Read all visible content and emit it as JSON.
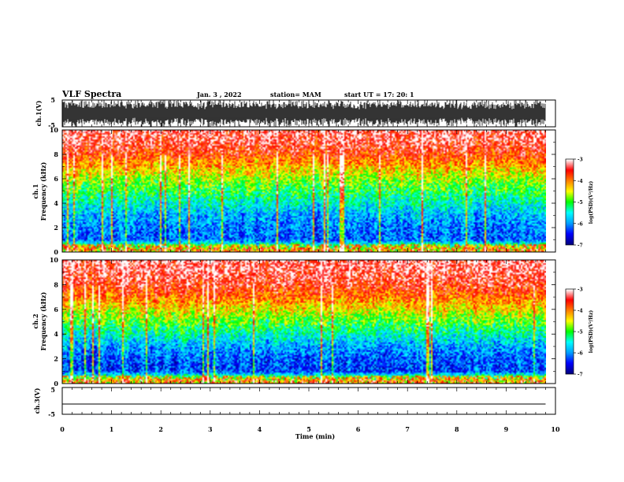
{
  "header": {
    "title": "VLF Spectra",
    "date": "Jan. 3 , 2022",
    "station": "station= MAM",
    "start": "start UT =  17: 20: 1"
  },
  "chart_data": [
    {
      "type": "line",
      "name": "ch1-waveform",
      "ylabel": "ch.1(V)",
      "ylim": [
        -5,
        5
      ],
      "yticks": [
        "5",
        "-5"
      ],
      "x_end_min": 9.8,
      "description_values": "dense noise bursts between about -5 and 5 V"
    },
    {
      "type": "heatmap",
      "name": "ch1-spectrogram",
      "ylabel_line1": "ch.1",
      "ylabel_line2": "Frequency (kHz)",
      "ylim": [
        0,
        10
      ],
      "yticks": [
        "0",
        "2",
        "4",
        "6",
        "8",
        "10"
      ],
      "colorbar_label": "log(PSD)(V²/Hz)",
      "colorbar_ticks": [
        "-3",
        "-4",
        "-5",
        "-6",
        "-7"
      ],
      "colorbar_range": [
        -7,
        -3
      ],
      "level_profile": [
        {
          "freq_khz": 0.3,
          "log_psd": -4.6
        },
        {
          "freq_khz": 1,
          "log_psd": -6.2
        },
        {
          "freq_khz": 2,
          "log_psd": -6.1
        },
        {
          "freq_khz": 3,
          "log_psd": -5.9
        },
        {
          "freq_khz": 4,
          "log_psd": -5.5
        },
        {
          "freq_khz": 5,
          "log_psd": -5.1
        },
        {
          "freq_khz": 6,
          "log_psd": -4.7
        },
        {
          "freq_khz": 7,
          "log_psd": -4.2
        },
        {
          "freq_khz": 8,
          "log_psd": -3.7
        },
        {
          "freq_khz": 9,
          "log_psd": -3.4
        },
        {
          "freq_khz": 10,
          "log_psd": -3.3
        }
      ]
    },
    {
      "type": "heatmap",
      "name": "ch2-spectrogram",
      "ylabel_line1": "ch.2",
      "ylabel_line2": "Frequency (kHz)",
      "ylim": [
        0,
        10
      ],
      "yticks": [
        "0",
        "2",
        "4",
        "6",
        "8",
        "10"
      ],
      "colorbar_label": "log(PSD)(V²/Hz)",
      "colorbar_ticks": [
        "-3",
        "-4",
        "-5",
        "-6",
        "-7"
      ],
      "colorbar_range": [
        -7,
        -3
      ],
      "level_profile": [
        {
          "freq_khz": 0.3,
          "log_psd": -4.5
        },
        {
          "freq_khz": 1,
          "log_psd": -6.3
        },
        {
          "freq_khz": 2,
          "log_psd": -6.2
        },
        {
          "freq_khz": 3,
          "log_psd": -5.9
        },
        {
          "freq_khz": 4,
          "log_psd": -5.4
        },
        {
          "freq_khz": 5,
          "log_psd": -4.9
        },
        {
          "freq_khz": 6,
          "log_psd": -4.4
        },
        {
          "freq_khz": 7,
          "log_psd": -3.9
        },
        {
          "freq_khz": 8,
          "log_psd": -3.5
        },
        {
          "freq_khz": 9,
          "log_psd": -3.3
        },
        {
          "freq_khz": 10,
          "log_psd": -3.2
        }
      ]
    },
    {
      "type": "line",
      "name": "ch3-waveform",
      "ylabel": "ch.3(V)",
      "ylim": [
        -5,
        5
      ],
      "yticks": [
        "5",
        "-5"
      ],
      "values_constant": 0,
      "x_end_min": 9.8
    }
  ],
  "xaxis": {
    "label": "Time (min)",
    "range": [
      0,
      10
    ],
    "ticks": [
      "0",
      "1",
      "2",
      "3",
      "4",
      "5",
      "6",
      "7",
      "8",
      "9",
      "10"
    ]
  },
  "colors": {
    "colormap": [
      "#000080",
      "#0000ff",
      "#00a0ff",
      "#00ffff",
      "#00ff00",
      "#ffff00",
      "#ff8000",
      "#ff0000",
      "#ffffff"
    ]
  }
}
